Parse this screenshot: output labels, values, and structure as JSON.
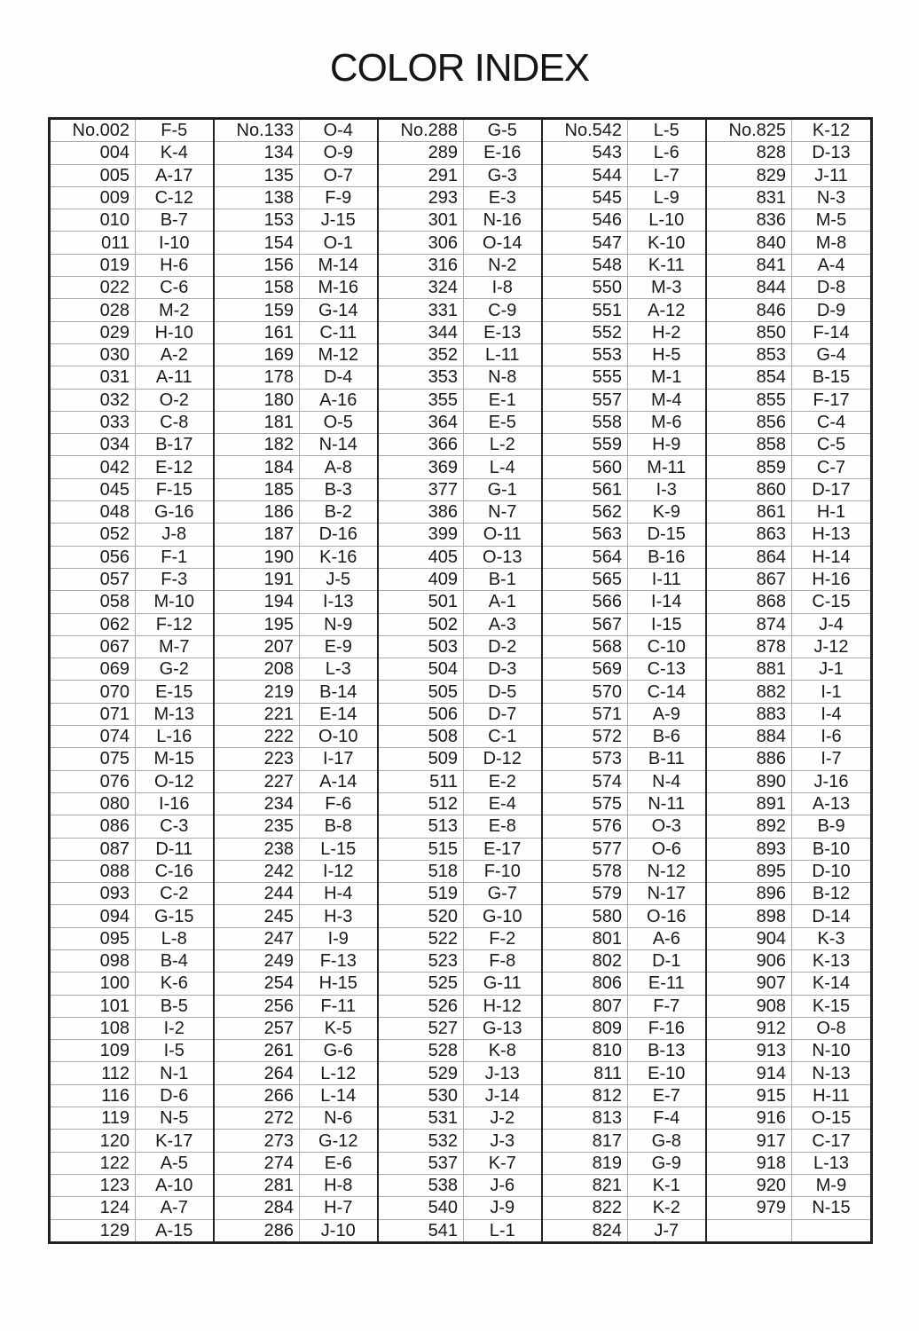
{
  "title": "COLOR INDEX",
  "groups": [
    {
      "rows": [
        [
          "No.002",
          "F-5"
        ],
        [
          "004",
          "K-4"
        ],
        [
          "005",
          "A-17"
        ],
        [
          "009",
          "C-12"
        ],
        [
          "010",
          "B-7"
        ],
        [
          "011",
          "I-10"
        ],
        [
          "019",
          "H-6"
        ],
        [
          "022",
          "C-6"
        ],
        [
          "028",
          "M-2"
        ],
        [
          "029",
          "H-10"
        ],
        [
          "030",
          "A-2"
        ],
        [
          "031",
          "A-11"
        ],
        [
          "032",
          "O-2"
        ],
        [
          "033",
          "C-8"
        ],
        [
          "034",
          "B-17"
        ],
        [
          "042",
          "E-12"
        ],
        [
          "045",
          "F-15"
        ],
        [
          "048",
          "G-16"
        ],
        [
          "052",
          "J-8"
        ],
        [
          "056",
          "F-1"
        ],
        [
          "057",
          "F-3"
        ],
        [
          "058",
          "M-10"
        ],
        [
          "062",
          "F-12"
        ],
        [
          "067",
          "M-7"
        ],
        [
          "069",
          "G-2"
        ],
        [
          "070",
          "E-15"
        ],
        [
          "071",
          "M-13"
        ],
        [
          "074",
          "L-16"
        ],
        [
          "075",
          "M-15"
        ],
        [
          "076",
          "O-12"
        ],
        [
          "080",
          "I-16"
        ],
        [
          "086",
          "C-3"
        ],
        [
          "087",
          "D-11"
        ],
        [
          "088",
          "C-16"
        ],
        [
          "093",
          "C-2"
        ],
        [
          "094",
          "G-15"
        ],
        [
          "095",
          "L-8"
        ],
        [
          "098",
          "B-4"
        ],
        [
          "100",
          "K-6"
        ],
        [
          "101",
          "B-5"
        ],
        [
          "108",
          "I-2"
        ],
        [
          "109",
          "I-5"
        ],
        [
          "112",
          "N-1"
        ],
        [
          "116",
          "D-6"
        ],
        [
          "119",
          "N-5"
        ],
        [
          "120",
          "K-17"
        ],
        [
          "122",
          "A-5"
        ],
        [
          "123",
          "A-10"
        ],
        [
          "124",
          "A-7"
        ],
        [
          "129",
          "A-15"
        ]
      ]
    },
    {
      "rows": [
        [
          "No.133",
          "O-4"
        ],
        [
          "134",
          "O-9"
        ],
        [
          "135",
          "O-7"
        ],
        [
          "138",
          "F-9"
        ],
        [
          "153",
          "J-15"
        ],
        [
          "154",
          "O-1"
        ],
        [
          "156",
          "M-14"
        ],
        [
          "158",
          "M-16"
        ],
        [
          "159",
          "G-14"
        ],
        [
          "161",
          "C-11"
        ],
        [
          "169",
          "M-12"
        ],
        [
          "178",
          "D-4"
        ],
        [
          "180",
          "A-16"
        ],
        [
          "181",
          "O-5"
        ],
        [
          "182",
          "N-14"
        ],
        [
          "184",
          "A-8"
        ],
        [
          "185",
          "B-3"
        ],
        [
          "186",
          "B-2"
        ],
        [
          "187",
          "D-16"
        ],
        [
          "190",
          "K-16"
        ],
        [
          "191",
          "J-5"
        ],
        [
          "194",
          "I-13"
        ],
        [
          "195",
          "N-9"
        ],
        [
          "207",
          "E-9"
        ],
        [
          "208",
          "L-3"
        ],
        [
          "219",
          "B-14"
        ],
        [
          "221",
          "E-14"
        ],
        [
          "222",
          "O-10"
        ],
        [
          "223",
          "I-17"
        ],
        [
          "227",
          "A-14"
        ],
        [
          "234",
          "F-6"
        ],
        [
          "235",
          "B-8"
        ],
        [
          "238",
          "L-15"
        ],
        [
          "242",
          "I-12"
        ],
        [
          "244",
          "H-4"
        ],
        [
          "245",
          "H-3"
        ],
        [
          "247",
          "I-9"
        ],
        [
          "249",
          "F-13"
        ],
        [
          "254",
          "H-15"
        ],
        [
          "256",
          "F-11"
        ],
        [
          "257",
          "K-5"
        ],
        [
          "261",
          "G-6"
        ],
        [
          "264",
          "L-12"
        ],
        [
          "266",
          "L-14"
        ],
        [
          "272",
          "N-6"
        ],
        [
          "273",
          "G-12"
        ],
        [
          "274",
          "E-6"
        ],
        [
          "281",
          "H-8"
        ],
        [
          "284",
          "H-7"
        ],
        [
          "286",
          "J-10"
        ]
      ]
    },
    {
      "rows": [
        [
          "No.288",
          "G-5"
        ],
        [
          "289",
          "E-16"
        ],
        [
          "291",
          "G-3"
        ],
        [
          "293",
          "E-3"
        ],
        [
          "301",
          "N-16"
        ],
        [
          "306",
          "O-14"
        ],
        [
          "316",
          "N-2"
        ],
        [
          "324",
          "I-8"
        ],
        [
          "331",
          "C-9"
        ],
        [
          "344",
          "E-13"
        ],
        [
          "352",
          "L-11"
        ],
        [
          "353",
          "N-8"
        ],
        [
          "355",
          "E-1"
        ],
        [
          "364",
          "E-5"
        ],
        [
          "366",
          "L-2"
        ],
        [
          "369",
          "L-4"
        ],
        [
          "377",
          "G-1"
        ],
        [
          "386",
          "N-7"
        ],
        [
          "399",
          "O-11"
        ],
        [
          "405",
          "O-13"
        ],
        [
          "409",
          "B-1"
        ],
        [
          "501",
          "A-1"
        ],
        [
          "502",
          "A-3"
        ],
        [
          "503",
          "D-2"
        ],
        [
          "504",
          "D-3"
        ],
        [
          "505",
          "D-5"
        ],
        [
          "506",
          "D-7"
        ],
        [
          "508",
          "C-1"
        ],
        [
          "509",
          "D-12"
        ],
        [
          "511",
          "E-2"
        ],
        [
          "512",
          "E-4"
        ],
        [
          "513",
          "E-8"
        ],
        [
          "515",
          "E-17"
        ],
        [
          "518",
          "F-10"
        ],
        [
          "519",
          "G-7"
        ],
        [
          "520",
          "G-10"
        ],
        [
          "522",
          "F-2"
        ],
        [
          "523",
          "F-8"
        ],
        [
          "525",
          "G-11"
        ],
        [
          "526",
          "H-12"
        ],
        [
          "527",
          "G-13"
        ],
        [
          "528",
          "K-8"
        ],
        [
          "529",
          "J-13"
        ],
        [
          "530",
          "J-14"
        ],
        [
          "531",
          "J-2"
        ],
        [
          "532",
          "J-3"
        ],
        [
          "537",
          "K-7"
        ],
        [
          "538",
          "J-6"
        ],
        [
          "540",
          "J-9"
        ],
        [
          "541",
          "L-1"
        ]
      ]
    },
    {
      "rows": [
        [
          "No.542",
          "L-5"
        ],
        [
          "543",
          "L-6"
        ],
        [
          "544",
          "L-7"
        ],
        [
          "545",
          "L-9"
        ],
        [
          "546",
          "L-10"
        ],
        [
          "547",
          "K-10"
        ],
        [
          "548",
          "K-11"
        ],
        [
          "550",
          "M-3"
        ],
        [
          "551",
          "A-12"
        ],
        [
          "552",
          "H-2"
        ],
        [
          "553",
          "H-5"
        ],
        [
          "555",
          "M-1"
        ],
        [
          "557",
          "M-4"
        ],
        [
          "558",
          "M-6"
        ],
        [
          "559",
          "H-9"
        ],
        [
          "560",
          "M-11"
        ],
        [
          "561",
          "I-3"
        ],
        [
          "562",
          "K-9"
        ],
        [
          "563",
          "D-15"
        ],
        [
          "564",
          "B-16"
        ],
        [
          "565",
          "I-11"
        ],
        [
          "566",
          "I-14"
        ],
        [
          "567",
          "I-15"
        ],
        [
          "568",
          "C-10"
        ],
        [
          "569",
          "C-13"
        ],
        [
          "570",
          "C-14"
        ],
        [
          "571",
          "A-9"
        ],
        [
          "572",
          "B-6"
        ],
        [
          "573",
          "B-11"
        ],
        [
          "574",
          "N-4"
        ],
        [
          "575",
          "N-11"
        ],
        [
          "576",
          "O-3"
        ],
        [
          "577",
          "O-6"
        ],
        [
          "578",
          "N-12"
        ],
        [
          "579",
          "N-17"
        ],
        [
          "580",
          "O-16"
        ],
        [
          "801",
          "A-6"
        ],
        [
          "802",
          "D-1"
        ],
        [
          "806",
          "E-11"
        ],
        [
          "807",
          "F-7"
        ],
        [
          "809",
          "F-16"
        ],
        [
          "810",
          "B-13"
        ],
        [
          "811",
          "E-10"
        ],
        [
          "812",
          "E-7"
        ],
        [
          "813",
          "F-4"
        ],
        [
          "817",
          "G-8"
        ],
        [
          "819",
          "G-9"
        ],
        [
          "821",
          "K-1"
        ],
        [
          "822",
          "K-2"
        ],
        [
          "824",
          "J-7"
        ]
      ]
    },
    {
      "rows": [
        [
          "No.825",
          "K-12"
        ],
        [
          "828",
          "D-13"
        ],
        [
          "829",
          "J-11"
        ],
        [
          "831",
          "N-3"
        ],
        [
          "836",
          "M-5"
        ],
        [
          "840",
          "M-8"
        ],
        [
          "841",
          "A-4"
        ],
        [
          "844",
          "D-8"
        ],
        [
          "846",
          "D-9"
        ],
        [
          "850",
          "F-14"
        ],
        [
          "853",
          "G-4"
        ],
        [
          "854",
          "B-15"
        ],
        [
          "855",
          "F-17"
        ],
        [
          "856",
          "C-4"
        ],
        [
          "858",
          "C-5"
        ],
        [
          "859",
          "C-7"
        ],
        [
          "860",
          "D-17"
        ],
        [
          "861",
          "H-1"
        ],
        [
          "863",
          "H-13"
        ],
        [
          "864",
          "H-14"
        ],
        [
          "867",
          "H-16"
        ],
        [
          "868",
          "C-15"
        ],
        [
          "874",
          "J-4"
        ],
        [
          "878",
          "J-12"
        ],
        [
          "881",
          "J-1"
        ],
        [
          "882",
          "I-1"
        ],
        [
          "883",
          "I-4"
        ],
        [
          "884",
          "I-6"
        ],
        [
          "886",
          "I-7"
        ],
        [
          "890",
          "J-16"
        ],
        [
          "891",
          "A-13"
        ],
        [
          "892",
          "B-9"
        ],
        [
          "893",
          "B-10"
        ],
        [
          "895",
          "D-10"
        ],
        [
          "896",
          "B-12"
        ],
        [
          "898",
          "D-14"
        ],
        [
          "904",
          "K-3"
        ],
        [
          "906",
          "K-13"
        ],
        [
          "907",
          "K-14"
        ],
        [
          "908",
          "K-15"
        ],
        [
          "912",
          "O-8"
        ],
        [
          "913",
          "N-10"
        ],
        [
          "914",
          "N-13"
        ],
        [
          "915",
          "H-11"
        ],
        [
          "916",
          "O-15"
        ],
        [
          "917",
          "C-17"
        ],
        [
          "918",
          "L-13"
        ],
        [
          "920",
          "M-9"
        ],
        [
          "979",
          "N-15"
        ]
      ]
    }
  ]
}
